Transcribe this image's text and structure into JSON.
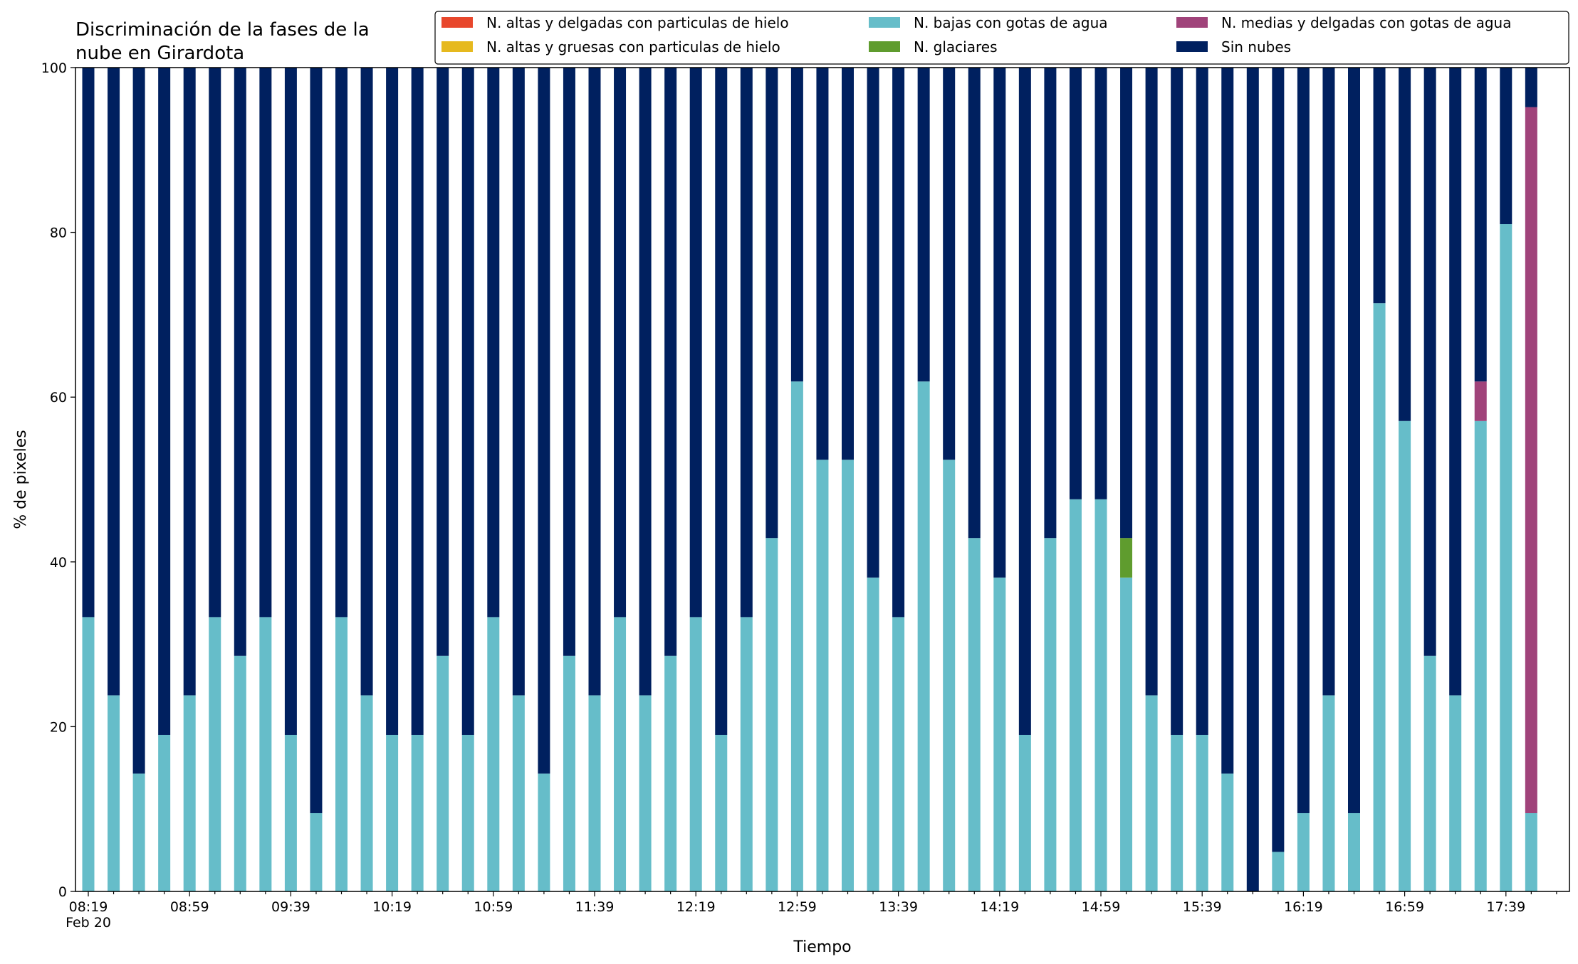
{
  "chart_data": {
    "type": "bar",
    "stacked": true,
    "title_lines": [
      "Discriminación de la fases de la",
      "nube en Girardota"
    ],
    "xlabel": "Tiempo",
    "ylabel": "% de pixeles",
    "ylim": [
      0,
      100
    ],
    "yticks": [
      "0",
      "20",
      "40",
      "60",
      "80",
      "100"
    ],
    "xtick_labels": [
      "08:19",
      "08:59",
      "09:39",
      "10:19",
      "10:59",
      "11:39",
      "12:19",
      "12:59",
      "13:39",
      "14:19",
      "14:59",
      "15:39",
      "16:19",
      "16:59",
      "17:39"
    ],
    "x_date_label": "Feb 20",
    "grid": false,
    "legend_position": "top-right",
    "legend": [
      {
        "name": "N. altas y delgadas con particulas de hielo",
        "color": "#e8472c"
      },
      {
        "name": "N. altas y gruesas con particulas de hielo",
        "color": "#e6b91e"
      },
      {
        "name": "N. bajas con gotas de agua",
        "color": "#66bdc9"
      },
      {
        "name": "N. glaciares",
        "color": "#5f9c2e"
      },
      {
        "name": "N. medias y delgadas con gotas de agua",
        "color": "#a0437a"
      },
      {
        "name": "Sin nubes",
        "color": "#00205f"
      }
    ],
    "series": [
      {
        "name": "N. altas y delgadas con particulas de hielo",
        "color": "#e8472c",
        "values": [
          0,
          0,
          0,
          0,
          0,
          0,
          0,
          0,
          0,
          0,
          0,
          0,
          0,
          0,
          0,
          0,
          0,
          0,
          0,
          0,
          0,
          0,
          0,
          0,
          0,
          0,
          0,
          0,
          0,
          0,
          0,
          0,
          0,
          0,
          0,
          0,
          0,
          0,
          0,
          0,
          0,
          0,
          0,
          0,
          0,
          0,
          0,
          0,
          0,
          0,
          0,
          0,
          0,
          0,
          0,
          0,
          0,
          0
        ]
      },
      {
        "name": "N. altas y gruesas con particulas de hielo",
        "color": "#e6b91e",
        "values": [
          0,
          0,
          0,
          0,
          0,
          0,
          0,
          0,
          0,
          0,
          0,
          0,
          0,
          0,
          0,
          0,
          0,
          0,
          0,
          0,
          0,
          0,
          0,
          0,
          0,
          0,
          0,
          0,
          0,
          0,
          0,
          0,
          0,
          0,
          0,
          0,
          0,
          0,
          0,
          0,
          0,
          0,
          0,
          0,
          0,
          0,
          0,
          0,
          0,
          0,
          0,
          0,
          0,
          0,
          0,
          0,
          0,
          0
        ]
      },
      {
        "name": "N. bajas con gotas de agua",
        "color": "#66bdc9",
        "values": [
          33.3,
          23.8,
          14.3,
          19,
          23.8,
          33.3,
          28.6,
          33.3,
          19,
          9.5,
          33.3,
          23.8,
          19,
          19,
          28.6,
          19,
          33.3,
          23.8,
          14.3,
          28.6,
          23.8,
          33.3,
          23.8,
          28.6,
          33.3,
          19,
          33.3,
          42.9,
          61.9,
          52.4,
          52.4,
          38.1,
          33.3,
          61.9,
          52.4,
          42.9,
          38.1,
          19,
          42.9,
          47.6,
          47.6,
          38.1,
          23.8,
          19,
          19,
          14.3,
          0,
          4.8,
          9.5,
          23.8,
          9.5,
          71.4,
          57.1,
          28.6,
          23.8,
          57.1,
          81,
          9.5
        ]
      },
      {
        "name": "N. glaciares",
        "color": "#5f9c2e",
        "values": [
          0,
          0,
          0,
          0,
          0,
          0,
          0,
          0,
          0,
          0,
          0,
          0,
          0,
          0,
          0,
          0,
          0,
          0,
          0,
          0,
          0,
          0,
          0,
          0,
          0,
          0,
          0,
          0,
          0,
          0,
          0,
          0,
          0,
          0,
          0,
          0,
          0,
          0,
          0,
          0,
          0,
          4.8,
          0,
          0,
          0,
          0,
          0,
          0,
          0,
          0,
          0,
          0,
          0,
          0,
          0,
          0,
          0,
          0
        ]
      },
      {
        "name": "N. medias y delgadas con gotas de agua",
        "color": "#a0437a",
        "values": [
          0,
          0,
          0,
          0,
          0,
          0,
          0,
          0,
          0,
          0,
          0,
          0,
          0,
          0,
          0,
          0,
          0,
          0,
          0,
          0,
          0,
          0,
          0,
          0,
          0,
          0,
          0,
          0,
          0,
          0,
          0,
          0,
          0,
          0,
          0,
          0,
          0,
          0,
          0,
          0,
          0,
          0,
          0,
          0,
          0,
          0,
          0,
          0,
          0,
          0,
          0,
          0,
          0,
          0,
          0,
          4.8,
          0,
          85.7
        ]
      },
      {
        "name": "Sin nubes",
        "color": "#00205f",
        "values": [
          66.7,
          76.2,
          85.7,
          81,
          76.2,
          66.7,
          71.4,
          66.7,
          81,
          90.5,
          66.7,
          76.2,
          81,
          81,
          71.4,
          81,
          66.7,
          76.2,
          85.7,
          71.4,
          76.2,
          66.7,
          76.2,
          71.4,
          66.7,
          81,
          66.7,
          57.1,
          38.1,
          47.6,
          47.6,
          61.9,
          66.7,
          38.1,
          47.6,
          57.1,
          61.9,
          81,
          57.1,
          52.4,
          52.4,
          57.1,
          76.2,
          81,
          81,
          85.7,
          100,
          95.2,
          90.5,
          76.2,
          90.5,
          28.6,
          42.9,
          71.4,
          76.2,
          38.1,
          19,
          4.8
        ]
      }
    ]
  }
}
